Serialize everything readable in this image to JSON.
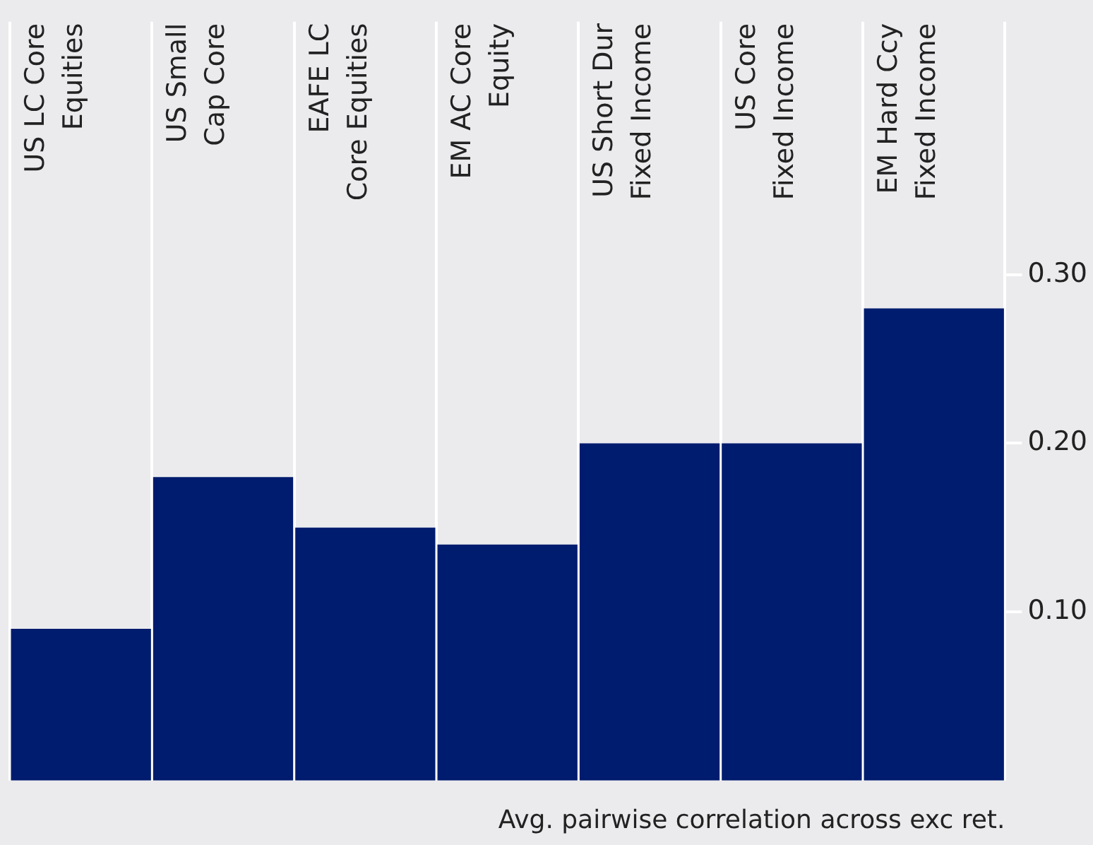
{
  "chart_data": {
    "type": "bar",
    "xlabel": "Avg. pairwise correlation across exc ret.",
    "categories": [
      "US LC Core\nEquities",
      "US Small\nCap Core",
      "EAFE LC\nCore Equities",
      "EM AC Core\nEquity",
      "US Short Dur\nFixed Income",
      "US Core\nFixed Income",
      "EM Hard Ccy\nFixed Income"
    ],
    "values": [
      0.09,
      0.18,
      0.15,
      0.14,
      0.2,
      0.2,
      0.28
    ],
    "color": "#001c6e",
    "ylim": [
      0,
      0.45
    ],
    "yticks": [
      {
        "value": 0.1,
        "label": "0.10"
      },
      {
        "value": 0.2,
        "label": "0.20"
      },
      {
        "value": 0.3,
        "label": "0.30"
      }
    ],
    "grid": "x",
    "legend": false
  }
}
